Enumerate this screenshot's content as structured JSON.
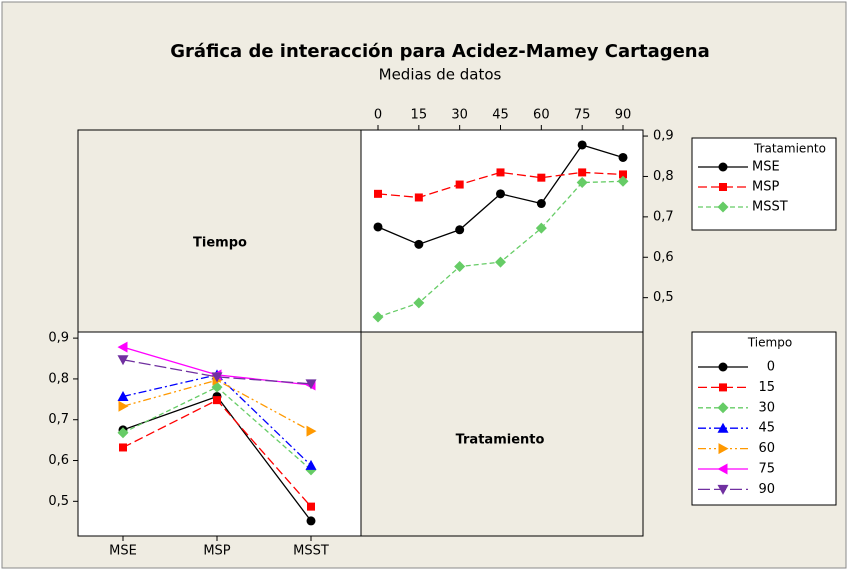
{
  "title": "Gráfica de interacción para Acidez-Mamey Cartagena",
  "subtitle": "Medias de datos",
  "chart_data": [
    {
      "type": "line",
      "xlabel": "Tiempo",
      "legend_title": "Tratamiento",
      "categories": [
        0,
        15,
        30,
        45,
        60,
        75,
        90
      ],
      "series": [
        {
          "name": "MSE",
          "color": "#000000",
          "marker": "circle",
          "dash": "solid",
          "values": [
            0.675,
            0.632,
            0.668,
            0.757,
            0.733,
            0.878,
            0.847
          ]
        },
        {
          "name": "MSP",
          "color": "#ff0000",
          "marker": "square",
          "dash": "dash",
          "values": [
            0.757,
            0.748,
            0.78,
            0.81,
            0.797,
            0.81,
            0.805
          ]
        },
        {
          "name": "MSST",
          "color": "#66cc66",
          "marker": "diamond",
          "dash": "short-dash",
          "values": [
            0.452,
            0.487,
            0.577,
            0.588,
            0.672,
            0.785,
            0.788
          ]
        }
      ],
      "ylim": [
        0.415,
        0.915
      ],
      "yticks": [
        {
          "value": 0.5,
          "label": "0,5"
        },
        {
          "value": 0.6,
          "label": "0,6"
        },
        {
          "value": 0.7,
          "label": "0,7"
        },
        {
          "value": 0.8,
          "label": "0,8"
        },
        {
          "value": 0.9,
          "label": "0,9"
        }
      ]
    },
    {
      "type": "line",
      "xlabel": "Tratamiento",
      "legend_title": "Tiempo",
      "categories": [
        "MSE",
        "MSP",
        "MSST"
      ],
      "series": [
        {
          "name": "0",
          "color": "#000000",
          "marker": "circle",
          "dash": "solid",
          "values": [
            0.675,
            0.757,
            0.452
          ]
        },
        {
          "name": "15",
          "color": "#ff0000",
          "marker": "square",
          "dash": "dash",
          "values": [
            0.632,
            0.748,
            0.487
          ]
        },
        {
          "name": "30",
          "color": "#66cc66",
          "marker": "diamond",
          "dash": "short-dash",
          "values": [
            0.668,
            0.78,
            0.577
          ]
        },
        {
          "name": "45",
          "color": "#0000ff",
          "marker": "triangle-up",
          "dash": "dash-dot",
          "values": [
            0.757,
            0.81,
            0.588
          ]
        },
        {
          "name": "60",
          "color": "#ff9900",
          "marker": "triangle-right",
          "dash": "dash-dot-dot",
          "values": [
            0.733,
            0.797,
            0.672
          ]
        },
        {
          "name": "75",
          "color": "#ff00ff",
          "marker": "triangle-left",
          "dash": "solid",
          "values": [
            0.878,
            0.81,
            0.785
          ]
        },
        {
          "name": "90",
          "color": "#7030a0",
          "marker": "triangle-down",
          "dash": "long-dash",
          "values": [
            0.847,
            0.805,
            0.788
          ]
        }
      ],
      "ylim": [
        0.415,
        0.915
      ],
      "yticks": [
        {
          "value": 0.5,
          "label": "0,5"
        },
        {
          "value": 0.6,
          "label": "0,6"
        },
        {
          "value": 0.7,
          "label": "0,7"
        },
        {
          "value": 0.8,
          "label": "0,8"
        },
        {
          "value": 0.9,
          "label": "0,9"
        }
      ]
    }
  ]
}
